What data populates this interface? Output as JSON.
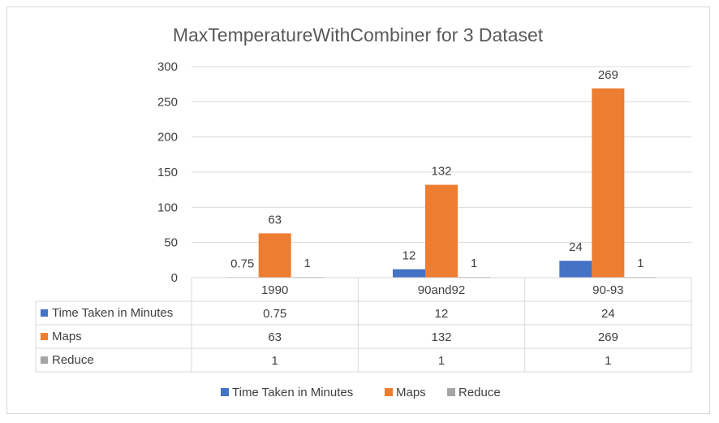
{
  "chart_data": {
    "type": "bar",
    "title": "MaxTemperatureWithCombiner for 3 Dataset",
    "categories": [
      "1990",
      "90and92",
      "90-93"
    ],
    "series": [
      {
        "name": "Time Taken in Minutes",
        "values": [
          0.75,
          12,
          24
        ],
        "labels": [
          "0.75",
          "12",
          "24"
        ],
        "color": "#4472c4"
      },
      {
        "name": "Maps",
        "values": [
          63,
          132,
          269
        ],
        "labels": [
          "63",
          "132",
          "269"
        ],
        "color": "#ed7d31"
      },
      {
        "name": "Reduce",
        "values": [
          1,
          1,
          1
        ],
        "labels": [
          "1",
          "1",
          "1"
        ],
        "color": "#a5a5a5"
      }
    ],
    "ylim": [
      0,
      300
    ],
    "yticks": [
      0,
      50,
      100,
      150,
      200,
      250,
      300
    ],
    "grid": true,
    "data_table": true,
    "legend": "bottom"
  }
}
